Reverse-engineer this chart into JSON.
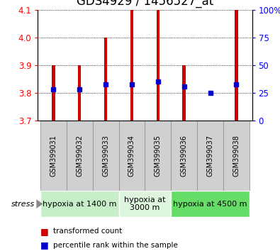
{
  "title": "GDS4929 / 1456527_at",
  "samples": [
    "GSM399031",
    "GSM399032",
    "GSM399033",
    "GSM399034",
    "GSM399035",
    "GSM399036",
    "GSM399037",
    "GSM399038"
  ],
  "transformed_counts": [
    3.9,
    3.9,
    4.0,
    4.1,
    4.1,
    3.9,
    3.7,
    4.1
  ],
  "percentile_ranks": [
    28,
    28,
    33,
    33,
    35,
    31,
    25,
    33
  ],
  "ylim_left": [
    3.7,
    4.1
  ],
  "ylim_right": [
    0,
    100
  ],
  "yticks_left": [
    3.7,
    3.8,
    3.9,
    4.0,
    4.1
  ],
  "yticks_right": [
    0,
    25,
    50,
    75,
    100
  ],
  "bar_color": "#cc0000",
  "dot_color": "#0000cc",
  "bar_bottom": 3.7,
  "bar_width": 0.12,
  "groups": [
    {
      "label": "hypoxia at 1400 m",
      "start": 0,
      "end": 3,
      "color": "#c8eec8"
    },
    {
      "label": "hypoxia at\n3000 m",
      "start": 3,
      "end": 5,
      "color": "#ddf5dd"
    },
    {
      "label": "hypoxia at 4500 m",
      "start": 5,
      "end": 8,
      "color": "#66dd66"
    }
  ],
  "sample_bg_color": "#d0d0d0",
  "background_color": "#ffffff",
  "title_fontsize": 12,
  "tick_fontsize": 8.5,
  "sample_fontsize": 7,
  "group_fontsize": 8,
  "legend_fontsize": 7.5
}
